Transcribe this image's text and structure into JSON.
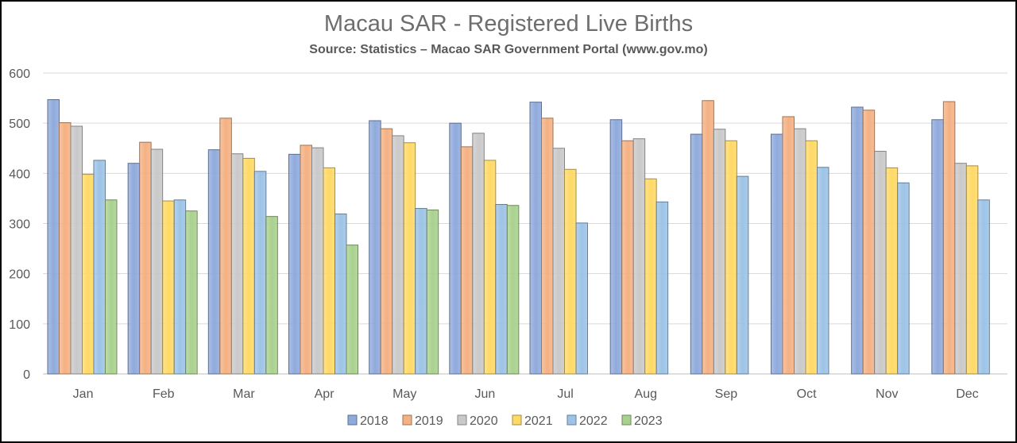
{
  "chart_data": {
    "type": "bar",
    "title": "Macau SAR - Registered Live Births",
    "subtitle": "Source: Statistics – Macao SAR Government Portal (www.gov.mo)",
    "xlabel": "",
    "ylabel": "",
    "ylim": [
      0,
      600
    ],
    "yticks": [
      "0",
      "100",
      "200",
      "300",
      "400",
      "500",
      "600"
    ],
    "grid": true,
    "legend_position": "bottom",
    "categories": [
      "Jan",
      "Feb",
      "Mar",
      "Apr",
      "May",
      "Jun",
      "Jul",
      "Aug",
      "Sep",
      "Oct",
      "Nov",
      "Dec"
    ],
    "series": [
      {
        "name": "2018",
        "color": "#8faadc",
        "values": [
          547,
          420,
          447,
          438,
          505,
          500,
          542,
          507,
          478,
          478,
          532,
          507
        ]
      },
      {
        "name": "2019",
        "color": "#f4b183",
        "values": [
          501,
          462,
          510,
          456,
          489,
          453,
          510,
          465,
          545,
          513,
          526,
          543
        ]
      },
      {
        "name": "2020",
        "color": "#c9c9c9",
        "values": [
          494,
          448,
          439,
          451,
          475,
          480,
          450,
          469,
          488,
          489,
          444,
          420
        ]
      },
      {
        "name": "2021",
        "color": "#ffd966",
        "values": [
          398,
          345,
          430,
          411,
          461,
          426,
          408,
          389,
          465,
          465,
          411,
          415
        ]
      },
      {
        "name": "2022",
        "color": "#9dc3e6",
        "values": [
          426,
          347,
          404,
          319,
          330,
          338,
          301,
          343,
          394,
          412,
          381,
          347
        ]
      },
      {
        "name": "2023",
        "color": "#a9d18e",
        "values": [
          347,
          325,
          314,
          257,
          327,
          336,
          null,
          null,
          null,
          null,
          null,
          null
        ]
      }
    ]
  }
}
